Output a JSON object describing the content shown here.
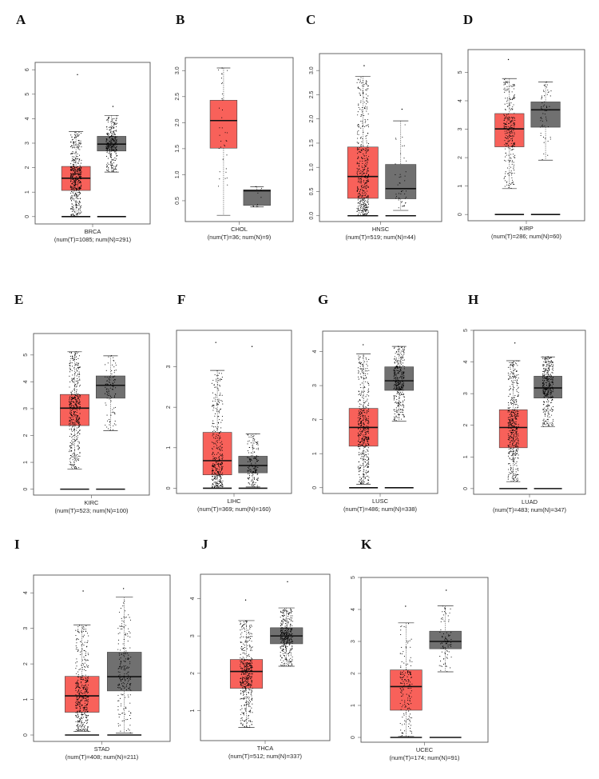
{
  "colors": {
    "tumor": "#F8615A",
    "normal": "#707070",
    "points": "#000000",
    "frame": "#555555"
  },
  "chart_data": [
    {
      "letter": "A",
      "type": "boxplot",
      "title": "BRCA",
      "caption": "(num(T)=1085; num(N)=291)",
      "num_T": 1085,
      "num_N": 291,
      "ylim": [
        -0.3,
        6.3
      ],
      "yticks": [
        "0",
        "1",
        "2",
        "3",
        "4",
        "5",
        "6"
      ],
      "zero_bar": true,
      "tumor": {
        "q1": 1.07,
        "median": 1.57,
        "q3": 2.05,
        "whisker_low": 0,
        "whisker_high": 3.47,
        "max": 5.8
      },
      "normal": {
        "q1": 2.68,
        "median": 2.96,
        "q3": 3.28,
        "whisker_low": 1.82,
        "whisker_high": 4.13,
        "max": 4.5
      }
    },
    {
      "letter": "B",
      "type": "boxplot",
      "title": "CHOL",
      "caption": "(num(T)=36; num(N)=9)",
      "num_T": 36,
      "num_N": 9,
      "ylim": [
        0.1,
        3.25
      ],
      "yticks": [
        "0.5",
        "1.0",
        "1.5",
        "2.0",
        "2.5",
        "3.0"
      ],
      "zero_bar": false,
      "tumor": {
        "q1": 1.51,
        "median": 2.04,
        "q3": 2.43,
        "whisker_low": 0.22,
        "whisker_high": 3.05,
        "max": 3.05
      },
      "normal": {
        "q1": 0.41,
        "median": 0.69,
        "q3": 0.71,
        "whisker_low": 0.38,
        "whisker_high": 0.77,
        "max": 0.77
      }
    },
    {
      "letter": "C",
      "type": "boxplot",
      "title": "HNSC",
      "caption": "(num(T)=519; num(N)=44)",
      "num_T": 519,
      "num_N": 44,
      "ylim": [
        -0.12,
        3.35
      ],
      "yticks": [
        "0.0",
        "0.5",
        "1.0",
        "1.5",
        "2.0",
        "2.5",
        "3.0"
      ],
      "zero_bar": true,
      "tumor": {
        "q1": 0.36,
        "median": 0.81,
        "q3": 1.42,
        "whisker_low": 0,
        "whisker_high": 2.88,
        "max": 3.1
      },
      "normal": {
        "q1": 0.35,
        "median": 0.56,
        "q3": 1.06,
        "whisker_low": 0.11,
        "whisker_high": 1.96,
        "max": 2.2
      }
    },
    {
      "letter": "D",
      "type": "boxplot",
      "title": "KIRP",
      "caption": "(num(T)=286; num(N)=60)",
      "num_T": 286,
      "num_N": 60,
      "ylim": [
        -0.22,
        5.8
      ],
      "yticks": [
        "0",
        "1",
        "2",
        "3",
        "4",
        "5"
      ],
      "zero_bar": true,
      "tumor": {
        "q1": 2.38,
        "median": 3.01,
        "q3": 3.55,
        "whisker_low": 0.91,
        "whisker_high": 4.78,
        "max": 5.45
      },
      "normal": {
        "q1": 3.07,
        "median": 3.68,
        "q3": 3.96,
        "whisker_low": 1.91,
        "whisker_high": 4.66,
        "max": 4.66
      }
    },
    {
      "letter": "E",
      "type": "boxplot",
      "title": "KIRC",
      "caption": "(num(T)=523; num(N)=100)",
      "num_T": 523,
      "num_N": 100,
      "ylim": [
        -0.22,
        5.8
      ],
      "yticks": [
        "0",
        "1",
        "2",
        "3",
        "4",
        "5"
      ],
      "zero_bar": true,
      "tumor": {
        "q1": 2.37,
        "median": 3.02,
        "q3": 3.53,
        "whisker_low": 0.75,
        "whisker_high": 5.12,
        "max": 5.12
      },
      "normal": {
        "q1": 3.39,
        "median": 3.87,
        "q3": 4.22,
        "whisker_low": 2.18,
        "whisker_high": 4.97,
        "max": 4.97
      }
    },
    {
      "letter": "F",
      "type": "boxplot",
      "title": "LIHC",
      "caption": "(num(T)=369; num(N)=160)",
      "num_T": 369,
      "num_N": 160,
      "ylim": [
        -0.13,
        3.9
      ],
      "yticks": [
        "0",
        "1",
        "2",
        "3"
      ],
      "zero_bar": true,
      "tumor": {
        "q1": 0.33,
        "median": 0.68,
        "q3": 1.38,
        "whisker_low": 0,
        "whisker_high": 2.91,
        "max": 3.6
      },
      "normal": {
        "q1": 0.38,
        "median": 0.56,
        "q3": 0.79,
        "whisker_low": 0.03,
        "whisker_high": 1.34,
        "max": 3.5
      }
    },
    {
      "letter": "G",
      "type": "boxplot",
      "title": "LUSC",
      "caption": "(num(T)=486; num(N)=338)",
      "num_T": 486,
      "num_N": 338,
      "ylim": [
        -0.17,
        4.6
      ],
      "yticks": [
        "0",
        "1",
        "2",
        "3",
        "4"
      ],
      "zero_bar": true,
      "tumor": {
        "q1": 1.22,
        "median": 1.77,
        "q3": 2.33,
        "whisker_low": 0.1,
        "whisker_high": 3.93,
        "max": 4.2
      },
      "normal": {
        "q1": 2.86,
        "median": 3.14,
        "q3": 3.55,
        "whisker_low": 1.95,
        "whisker_high": 4.15,
        "max": 4.15
      }
    },
    {
      "letter": "H",
      "type": "boxplot",
      "title": "LUAD",
      "caption": "(num(T)=483; num(N)=347)",
      "num_T": 483,
      "num_N": 347,
      "ylim": [
        -0.18,
        5.0
      ],
      "yticks": [
        "0",
        "1",
        "2",
        "3",
        "4",
        "5"
      ],
      "zero_bar": true,
      "tumor": {
        "q1": 1.29,
        "median": 1.93,
        "q3": 2.49,
        "whisker_low": 0.22,
        "whisker_high": 4.04,
        "max": 4.6
      },
      "normal": {
        "q1": 2.86,
        "median": 3.18,
        "q3": 3.55,
        "whisker_low": 1.96,
        "whisker_high": 4.16,
        "max": 4.16
      }
    },
    {
      "letter": "I",
      "type": "boxplot",
      "title": "STAD",
      "caption": "(num(T)=408; num(N)=211)",
      "num_T": 408,
      "num_N": 211,
      "ylim": [
        -0.18,
        4.5
      ],
      "yticks": [
        "0",
        "1",
        "2",
        "3",
        "4"
      ],
      "zero_bar": true,
      "tumor": {
        "q1": 0.64,
        "median": 1.1,
        "q3": 1.65,
        "whisker_low": 0.1,
        "whisker_high": 3.1,
        "max": 4.05
      },
      "normal": {
        "q1": 1.24,
        "median": 1.64,
        "q3": 2.33,
        "whisker_low": 0.05,
        "whisker_high": 3.88,
        "max": 4.12
      }
    },
    {
      "letter": "J",
      "type": "boxplot",
      "title": "THCA",
      "caption": "(num(T)=512; num(N)=337)",
      "num_T": 512,
      "num_N": 337,
      "ylim": [
        0.2,
        4.65
      ],
      "yticks": [
        "1",
        "2",
        "3",
        "4"
      ],
      "zero_bar": false,
      "tumor": {
        "q1": 1.6,
        "median": 2.05,
        "q3": 2.37,
        "whisker_low": 0.55,
        "whisker_high": 3.41,
        "max": 3.96
      },
      "normal": {
        "q1": 2.79,
        "median": 3.0,
        "q3": 3.22,
        "whisker_low": 2.19,
        "whisker_high": 3.75,
        "max": 4.45
      }
    },
    {
      "letter": "K",
      "type": "boxplot",
      "title": "UCEC",
      "caption": "(num(T)=174; num(N)=91)",
      "num_T": 174,
      "num_N": 91,
      "ylim": [
        -0.15,
        5.0
      ],
      "yticks": [
        "0",
        "1",
        "2",
        "3",
        "4",
        "5"
      ],
      "zero_bar": true,
      "tumor": {
        "q1": 0.85,
        "median": 1.59,
        "q3": 2.11,
        "whisker_low": 0.03,
        "whisker_high": 3.58,
        "max": 4.1
      },
      "normal": {
        "q1": 2.77,
        "median": 3.0,
        "q3": 3.32,
        "whisker_low": 2.05,
        "whisker_high": 4.11,
        "max": 4.6
      }
    }
  ]
}
